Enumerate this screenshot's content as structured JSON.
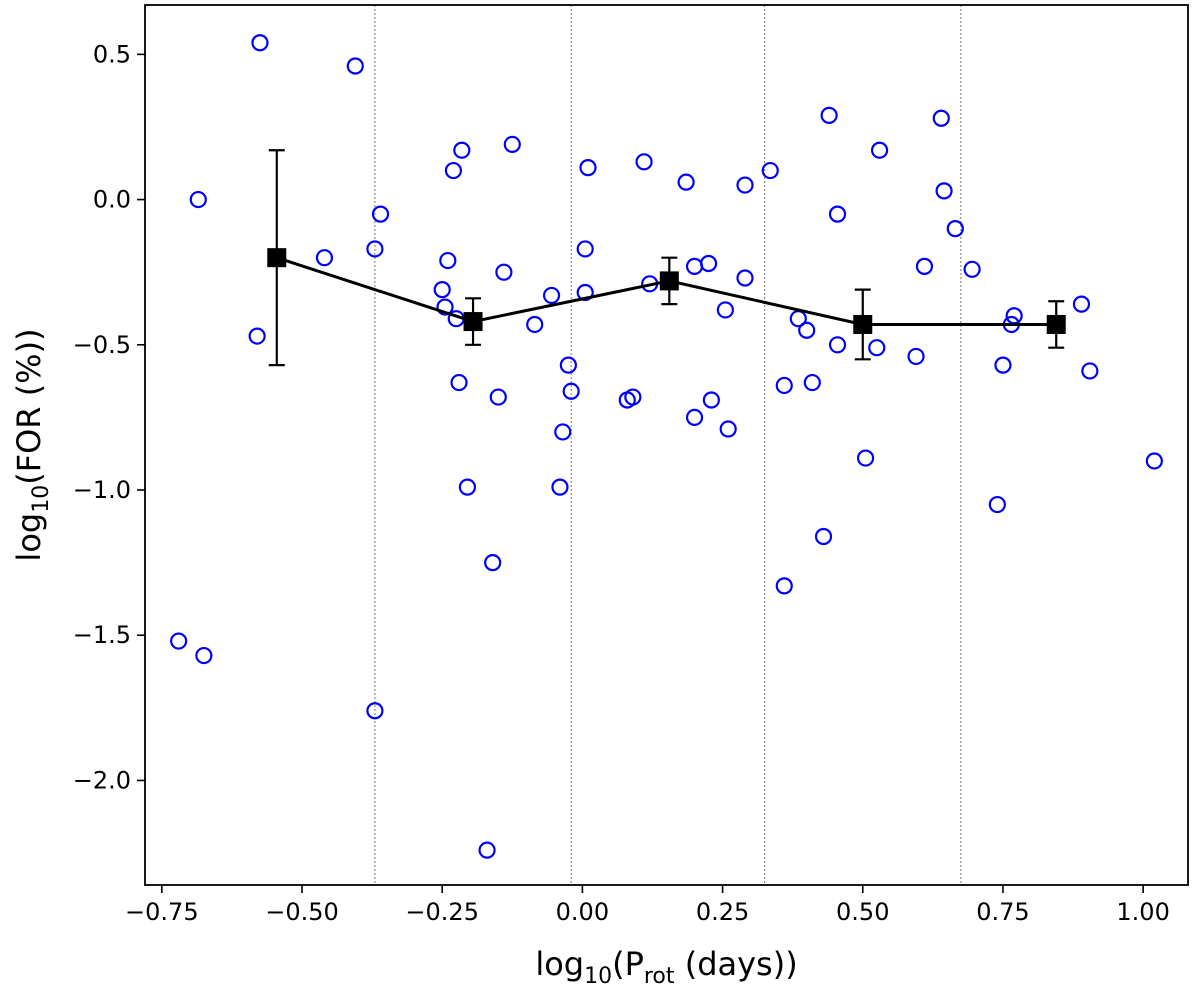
{
  "chart_data": {
    "type": "scatter",
    "xlabel": {
      "base": "log",
      "sub1": "10",
      "mid": "(P",
      "sub2": "rot",
      "end": " (days))"
    },
    "ylabel": {
      "base": "log",
      "sub1": "10",
      "end": "(FOR (%))"
    },
    "xlim": [
      -0.78,
      1.08
    ],
    "ylim": [
      -2.36,
      0.67
    ],
    "xticks": [
      -0.75,
      -0.5,
      -0.25,
      0.0,
      0.25,
      0.5,
      0.75,
      1.0
    ],
    "xtick_labels": [
      "−0.75",
      "−0.50",
      "−0.25",
      "0.00",
      "0.25",
      "0.50",
      "0.75",
      "1.00"
    ],
    "yticks": [
      0.5,
      0.0,
      -0.5,
      -1.0,
      -1.5,
      -2.0
    ],
    "ytick_labels": [
      "0.5",
      "0.0",
      "−0.5",
      "−1.0",
      "−1.5",
      "−2.0"
    ],
    "bin_edges": [
      -0.37,
      -0.02,
      0.325,
      0.675
    ],
    "colors": {
      "points": "#0000ff",
      "binned": "#000000",
      "bin_lines": "#777777"
    },
    "series": [
      {
        "name": "stars",
        "marker": "open-circle",
        "points": [
          [
            -0.575,
            0.54
          ],
          [
            -0.405,
            0.46
          ],
          [
            -0.685,
            0.0
          ],
          [
            -0.58,
            -0.47
          ],
          [
            -0.46,
            -0.2
          ],
          [
            -0.36,
            -0.05
          ],
          [
            -0.37,
            -0.17
          ],
          [
            -0.72,
            -1.52
          ],
          [
            -0.675,
            -1.57
          ],
          [
            -0.37,
            -1.76
          ],
          [
            -0.215,
            0.17
          ],
          [
            -0.23,
            0.1
          ],
          [
            -0.125,
            0.19
          ],
          [
            -0.24,
            -0.21
          ],
          [
            -0.25,
            -0.31
          ],
          [
            -0.245,
            -0.37
          ],
          [
            -0.225,
            -0.41
          ],
          [
            -0.22,
            -0.63
          ],
          [
            -0.14,
            -0.25
          ],
          [
            -0.085,
            -0.43
          ],
          [
            -0.15,
            -0.68
          ],
          [
            -0.205,
            -0.99
          ],
          [
            -0.16,
            -1.25
          ],
          [
            -0.17,
            -2.24
          ],
          [
            -0.055,
            -0.33
          ],
          [
            -0.025,
            -0.57
          ],
          [
            -0.02,
            -0.66
          ],
          [
            -0.035,
            -0.8
          ],
          [
            -0.04,
            -0.99
          ],
          [
            0.01,
            0.11
          ],
          [
            0.005,
            -0.17
          ],
          [
            0.005,
            -0.32
          ],
          [
            0.11,
            0.13
          ],
          [
            0.12,
            -0.29
          ],
          [
            0.08,
            -0.69
          ],
          [
            0.09,
            -0.68
          ],
          [
            0.185,
            0.06
          ],
          [
            0.2,
            -0.23
          ],
          [
            0.225,
            -0.22
          ],
          [
            0.2,
            -0.75
          ],
          [
            0.23,
            -0.69
          ],
          [
            0.255,
            -0.38
          ],
          [
            0.26,
            -0.79
          ],
          [
            0.29,
            0.05
          ],
          [
            0.29,
            -0.27
          ],
          [
            0.335,
            0.1
          ],
          [
            0.36,
            -0.64
          ],
          [
            0.385,
            -0.41
          ],
          [
            0.4,
            -0.45
          ],
          [
            0.41,
            -0.63
          ],
          [
            0.44,
            0.29
          ],
          [
            0.455,
            -0.05
          ],
          [
            0.455,
            -0.5
          ],
          [
            0.43,
            -1.16
          ],
          [
            0.36,
            -1.33
          ],
          [
            0.53,
            0.17
          ],
          [
            0.525,
            -0.51
          ],
          [
            0.505,
            -0.89
          ],
          [
            0.595,
            -0.54
          ],
          [
            0.61,
            -0.23
          ],
          [
            0.64,
            0.28
          ],
          [
            0.645,
            0.03
          ],
          [
            0.665,
            -0.1
          ],
          [
            0.695,
            -0.24
          ],
          [
            0.77,
            -0.4
          ],
          [
            0.765,
            -0.43
          ],
          [
            0.75,
            -0.57
          ],
          [
            0.74,
            -1.05
          ],
          [
            0.89,
            -0.36
          ],
          [
            0.905,
            -0.59
          ],
          [
            1.02,
            -0.9
          ]
        ]
      },
      {
        "name": "binned-mean",
        "marker": "filled-square",
        "x": [
          -0.545,
          -0.195,
          0.155,
          0.5,
          0.845
        ],
        "y": [
          -0.2,
          -0.42,
          -0.28,
          -0.43,
          -0.43
        ],
        "err_low": [
          0.37,
          0.08,
          0.08,
          0.12,
          0.08
        ],
        "err_high": [
          0.37,
          0.08,
          0.08,
          0.12,
          0.08
        ]
      }
    ]
  }
}
